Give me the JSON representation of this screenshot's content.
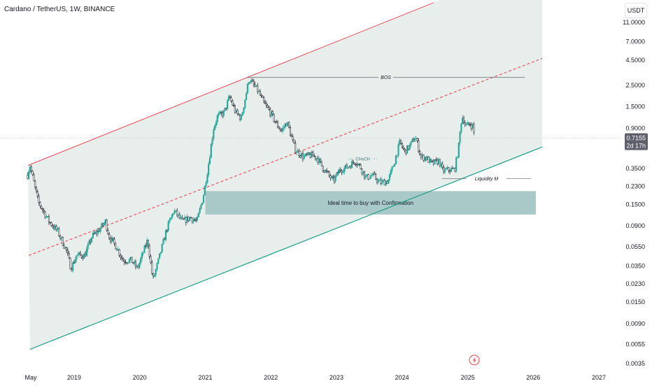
{
  "header": {
    "title": "Cardano / TetherUS, 1W, BINANCE",
    "currency_button": "USDT"
  },
  "price_tag": {
    "price": "0.7155",
    "countdown": "2d 17h"
  },
  "annotations": {
    "bos": "BOS",
    "choch": "CHoCH",
    "liquidity": "Liquidity M",
    "buy_zone": "Ideal time to buy with Confirmation"
  },
  "colors": {
    "up_candle": "#26a69a",
    "down_candle": "#131722",
    "channel_top": "#f23645",
    "channel_mid": "#f23645",
    "channel_bottom": "#089981",
    "channel_fill": "#e3ebe9",
    "buy_zone": "#a9c9c8"
  },
  "chart_data": {
    "type": "candlestick",
    "title": "Cardano / TetherUS, 1W, BINANCE",
    "yscale": "log",
    "ylim": [
      0.0032,
      15
    ],
    "xlim": [
      "2018-04-15",
      "2027-07-01"
    ],
    "x_tick_labels": [
      {
        "label": "May",
        "date": "2018-05-01"
      },
      {
        "label": "2019",
        "date": "2019-01-01"
      },
      {
        "label": "2020",
        "date": "2020-01-01"
      },
      {
        "label": "2021",
        "date": "2021-01-01"
      },
      {
        "label": "2022",
        "date": "2022-01-01"
      },
      {
        "label": "2023",
        "date": "2023-01-01"
      },
      {
        "label": "2024",
        "date": "2024-01-01"
      },
      {
        "label": "2025",
        "date": "2025-01-01"
      },
      {
        "label": "2026",
        "date": "2026-01-01"
      },
      {
        "label": "2027",
        "date": "2027-01-01"
      }
    ],
    "y_tick_labels": [
      "11.0000",
      "7.0000",
      "4.5000",
      "2.5000",
      "1.5000",
      "0.9000",
      "0.3500",
      "0.2300",
      "0.1500",
      "0.0900",
      "0.0550",
      "0.0350",
      "0.0230",
      "0.0150",
      "0.0090",
      "0.0055",
      "0.0035"
    ],
    "approx_close_path": [
      [
        "2018-04-17",
        0.3
      ],
      [
        "2018-04-30",
        0.38
      ],
      [
        "2018-06-15",
        0.16
      ],
      [
        "2018-08-15",
        0.1
      ],
      [
        "2018-10-01",
        0.08
      ],
      [
        "2018-11-20",
        0.05
      ],
      [
        "2018-12-15",
        0.033
      ],
      [
        "2019-01-15",
        0.045
      ],
      [
        "2019-03-01",
        0.045
      ],
      [
        "2019-04-10",
        0.07
      ],
      [
        "2019-05-15",
        0.08
      ],
      [
        "2019-06-25",
        0.1
      ],
      [
        "2019-07-15",
        0.07
      ],
      [
        "2019-08-25",
        0.055
      ],
      [
        "2019-10-01",
        0.04
      ],
      [
        "2019-11-15",
        0.04
      ],
      [
        "2019-12-20",
        0.033
      ],
      [
        "2020-02-15",
        0.065
      ],
      [
        "2020-03-15",
        0.025
      ],
      [
        "2020-04-15",
        0.04
      ],
      [
        "2020-06-01",
        0.085
      ],
      [
        "2020-07-10",
        0.13
      ],
      [
        "2020-08-25",
        0.1
      ],
      [
        "2020-10-10",
        0.11
      ],
      [
        "2020-11-15",
        0.1
      ],
      [
        "2020-12-20",
        0.18
      ],
      [
        "2021-01-15",
        0.35
      ],
      [
        "2021-02-15",
        0.9
      ],
      [
        "2021-03-10",
        1.2
      ],
      [
        "2021-04-15",
        1.3
      ],
      [
        "2021-05-15",
        1.9
      ],
      [
        "2021-06-20",
        1.3
      ],
      [
        "2021-07-20",
        1.15
      ],
      [
        "2021-09-01",
        2.9
      ],
      [
        "2021-10-20",
        2.2
      ],
      [
        "2021-11-25",
        1.6
      ],
      [
        "2021-12-25",
        1.35
      ],
      [
        "2022-02-01",
        1.0
      ],
      [
        "2022-03-01",
        0.85
      ],
      [
        "2022-04-01",
        1.05
      ],
      [
        "2022-05-15",
        0.55
      ],
      [
        "2022-07-01",
        0.46
      ],
      [
        "2022-08-15",
        0.48
      ],
      [
        "2022-09-15",
        0.45
      ],
      [
        "2022-10-20",
        0.35
      ],
      [
        "2022-12-15",
        0.26
      ],
      [
        "2023-01-20",
        0.34
      ],
      [
        "2023-03-01",
        0.36
      ],
      [
        "2023-04-15",
        0.42
      ],
      [
        "2023-05-15",
        0.36
      ],
      [
        "2023-06-15",
        0.28
      ],
      [
        "2023-07-20",
        0.3
      ],
      [
        "2023-09-01",
        0.25
      ],
      [
        "2023-10-15",
        0.26
      ],
      [
        "2023-11-15",
        0.38
      ],
      [
        "2023-12-20",
        0.65
      ],
      [
        "2024-01-15",
        0.52
      ],
      [
        "2024-02-15",
        0.6
      ],
      [
        "2024-03-15",
        0.75
      ],
      [
        "2024-04-15",
        0.46
      ],
      [
        "2024-05-15",
        0.45
      ],
      [
        "2024-06-15",
        0.39
      ],
      [
        "2024-07-25",
        0.42
      ],
      [
        "2024-08-15",
        0.33
      ],
      [
        "2024-09-15",
        0.34
      ],
      [
        "2024-10-20",
        0.34
      ],
      [
        "2024-11-10",
        0.55
      ],
      [
        "2024-11-25",
        1.05
      ],
      [
        "2024-12-05",
        1.2
      ],
      [
        "2024-12-20",
        0.95
      ],
      [
        "2025-01-15",
        1.0
      ],
      [
        "2025-01-30",
        0.95
      ],
      [
        "2025-02-08",
        0.7155
      ]
    ],
    "price_line": 0.7155,
    "channel": {
      "upper": [
        [
          "2018-04-25",
          0.38
        ],
        [
          "2021-09-01",
          3.05
        ]
      ],
      "middle": [
        [
          "2018-04-25",
          0.045
        ],
        [
          "2021-09-01",
          0.33
        ]
      ],
      "lower": [
        [
          "2018-05-01",
          0.0049
        ],
        [
          "2025-01-01",
          0.29
        ]
      ]
    },
    "levels": [
      {
        "label": "BOS",
        "price": 3.0,
        "from": "2021-08-20",
        "to": "2025-11-15"
      },
      {
        "label": "CHoCH",
        "price": 0.44,
        "from": "2023-03-10",
        "to": "2023-08-15"
      },
      {
        "label": "Liquidity M",
        "price": 0.275,
        "from": "2024-08-10",
        "to": "2025-12-20"
      }
    ],
    "zones": [
      {
        "label": "Ideal time to buy with Confirmation",
        "from": "2021-01-01",
        "to": "2026-01-15",
        "price_top": 0.205,
        "price_bottom": 0.118
      }
    ]
  }
}
